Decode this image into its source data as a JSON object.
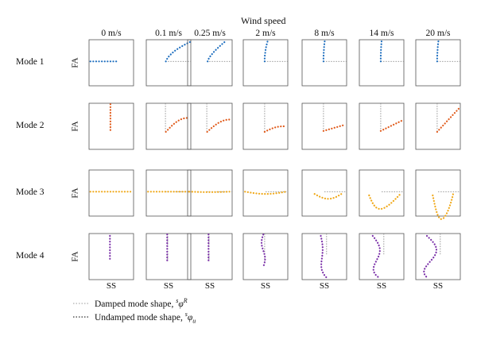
{
  "title": "Wind speed",
  "wind_speeds": [
    "0 m/s",
    "0.1 m/s",
    "0.25 m/s",
    "2 m/s",
    "8 m/s",
    "14 m/s",
    "20 m/s"
  ],
  "modes": [
    {
      "label": "Mode 1",
      "color": "#1f6fbf",
      "axis": "FA"
    },
    {
      "label": "Mode 2",
      "color": "#e05a1a",
      "axis": "FA"
    },
    {
      "label": "Mode 3",
      "color": "#f0a818",
      "axis": "FA"
    },
    {
      "label": "Mode 4",
      "color": "#7a2fa8",
      "axis": "FA"
    }
  ],
  "x_axis_label": "SS",
  "legend": {
    "damped": "Damped mode shape, ",
    "undamped": "Undamped mode shape, "
  }
}
